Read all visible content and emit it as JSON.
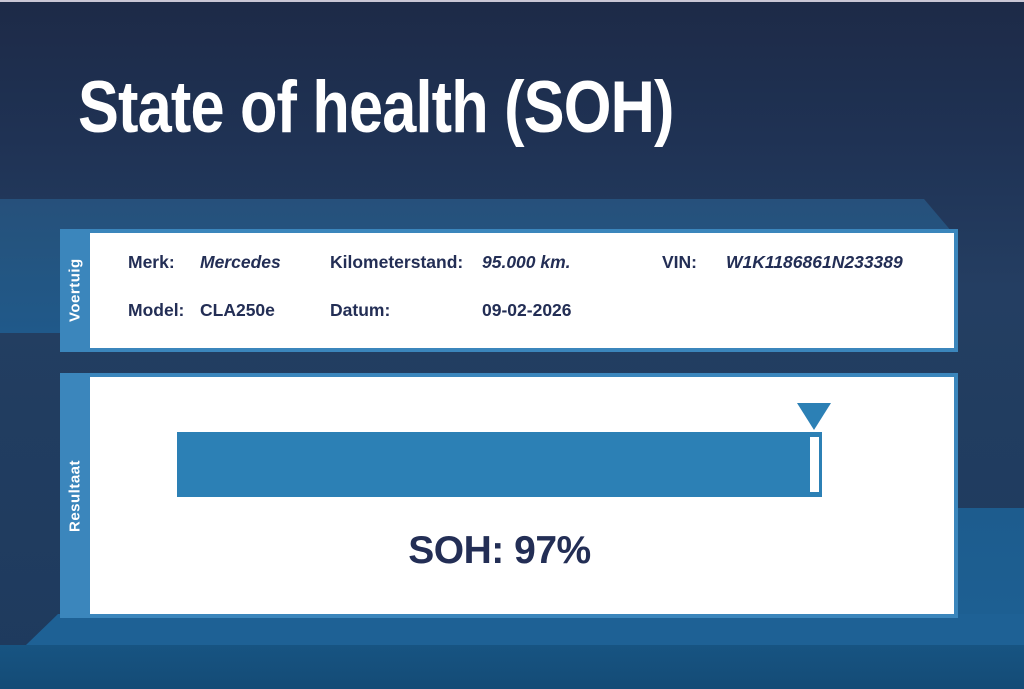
{
  "page": {
    "title": "State of health (SOH)"
  },
  "colors": {
    "background_top": "#1d2a47",
    "background_mid": "#243e62",
    "ribbon": "#26507b",
    "panel_accent": "#3b86bc",
    "bar_fill": "#2c80b5",
    "text_dark": "#232e55",
    "band_upper": "#1e6195",
    "band_lower": "#175482",
    "title_text": "#ffffff"
  },
  "vehicle_panel": {
    "side_label": "Voertuig",
    "rows": [
      {
        "c1_label": "Merk:",
        "c1_value": "Mercedes",
        "c2_label": "Kilometerstand:",
        "c2_value": "95.000 km.",
        "c3_label": "VIN:",
        "c3_value": "W1K1186861N233389"
      },
      {
        "c1_label": "Model:",
        "c1_value": "CLA250e",
        "c2_label": "Datum:",
        "c2_value": "09-02-2026"
      }
    ]
  },
  "result_panel": {
    "side_label": "Resultaat",
    "soh_text": "SOH: 97%",
    "soh_percent": 97
  },
  "chart_data": {
    "type": "bar",
    "title": "State of health (SOH)",
    "categories": [
      "SOH"
    ],
    "values": [
      97
    ],
    "unit": "%",
    "xlim": [
      0,
      100
    ],
    "annotations": [
      "marker at 97%",
      "SOH: 97%"
    ]
  }
}
